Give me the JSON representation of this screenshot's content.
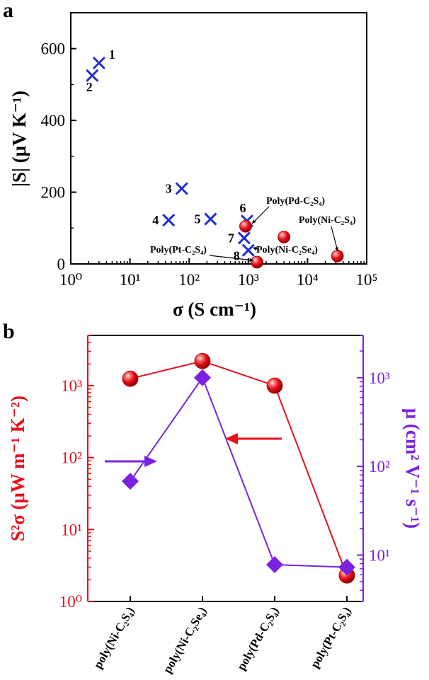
{
  "chart_data": [
    {
      "panel_label": "a",
      "type": "scatter",
      "xlabel": "σ (S cm⁻¹)",
      "ylabel": "|S| (μV K⁻¹)",
      "xscale": "log",
      "xlim": [
        1,
        100000
      ],
      "ylim": [
        0,
        700
      ],
      "x_ticks": [
        1,
        10,
        100,
        1000,
        10000,
        100000
      ],
      "x_tick_labels": [
        "10⁰",
        "10¹",
        "10²",
        "10³",
        "10⁴",
        "10⁵"
      ],
      "y_ticks": [
        0,
        200,
        400,
        600
      ],
      "y_tick_labels": [
        "0",
        "200",
        "400",
        "600"
      ],
      "series": [
        {
          "marker": "cross",
          "color": "#1f2fd0",
          "points": [
            {
              "label": "1",
              "x": 3.0,
              "y": 560
            },
            {
              "label": "2",
              "x": 2.3,
              "y": 525
            },
            {
              "label": "3",
              "x": 75,
              "y": 210
            },
            {
              "label": "4",
              "x": 45,
              "y": 122
            },
            {
              "label": "5",
              "x": 230,
              "y": 125
            },
            {
              "label": "6",
              "x": 950,
              "y": 120
            },
            {
              "label": "7",
              "x": 850,
              "y": 72
            },
            {
              "label": "8",
              "x": 1000,
              "y": 38
            }
          ]
        },
        {
          "marker": "sphere",
          "color": "#e8101a",
          "points": [
            {
              "x": 900,
              "y": 105
            },
            {
              "x": 4000,
              "y": 75
            },
            {
              "x": 32000,
              "y": 22
            },
            {
              "x": 1400,
              "y": 5
            }
          ]
        }
      ],
      "annotations": [
        {
          "label": "Poly(Pd-C₂S₄)",
          "target": [
            900,
            105
          ]
        },
        {
          "label": "Poly(Ni-C₂S₄)",
          "target": [
            32000,
            22
          ]
        },
        {
          "label": "Poly(Pt-C₂S₄)",
          "target": [
            1400,
            5
          ]
        },
        {
          "label": "Poly(Ni-C₂Se₄)",
          "target": [
            1100,
            38
          ]
        }
      ]
    },
    {
      "panel_label": "b",
      "type": "line",
      "categories": [
        "poly(Ni-C₂S₄)",
        "poly(Ni-C₂Se₄)",
        "poly(Pd-C₂S₄)",
        "poly(Pt-C₂S₄)"
      ],
      "ylabel_left": "S²σ (μW m⁻¹ K⁻²)",
      "ylabel_right": "μ (cm² V⁻¹ s⁻¹)",
      "yscale_left": "log",
      "yscale_right": "log",
      "ylim_left": [
        1,
        5000
      ],
      "ylim_right": [
        3,
        3000
      ],
      "y_left_ticks": [
        1,
        10,
        100,
        1000
      ],
      "y_left_tick_labels": [
        "10⁰",
        "10¹",
        "10²",
        "10³"
      ],
      "y_right_ticks": [
        10,
        100,
        1000
      ],
      "y_right_tick_labels": [
        "10¹",
        "10²",
        "10³"
      ],
      "series": [
        {
          "axis": "left",
          "marker": "sphere",
          "color": "#e8101a",
          "values": [
            1250,
            2200,
            1000,
            2.3
          ]
        },
        {
          "axis": "right",
          "marker": "diamond",
          "color": "#7a22e0",
          "values": [
            68,
            1000,
            7.8,
            7.3
          ]
        }
      ]
    }
  ]
}
